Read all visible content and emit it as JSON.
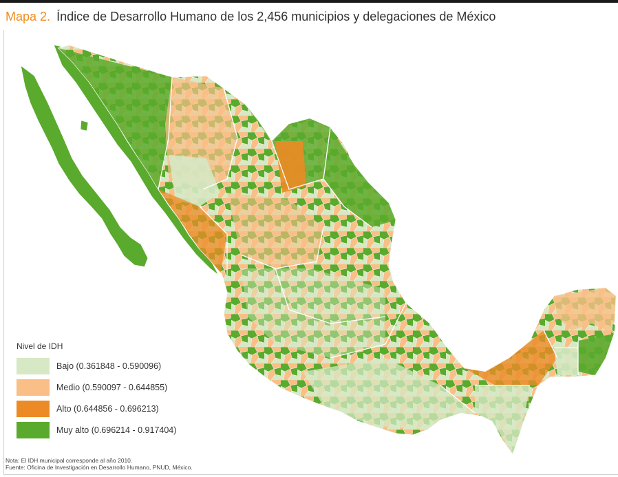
{
  "title": {
    "prefix": "Mapa 2.",
    "text": "Índice de Desarrollo Humano de los 2,456 municipios y delegaciones de México"
  },
  "legend": {
    "title": "Nivel de IDH",
    "items": [
      {
        "label": "Bajo (0.361848 - 0.590096)",
        "color": "#d6e8c4"
      },
      {
        "label": "Medio (0.590097 - 0.644855)",
        "color": "#f9bf87"
      },
      {
        "label": "Alto (0.644856 - 0.696213)",
        "color": "#ec8b25"
      },
      {
        "label": "Muy alto (0.696214 - 0.917404)",
        "color": "#5aaa2d"
      }
    ]
  },
  "notes": {
    "nota": "Nota: El IDH municipal corresponde al año 2010.",
    "fuente": "Fuente: Oficina de Investigación en Desarrollo Humano, PNUD, México."
  },
  "colors": {
    "title_accent": "#f08c1e",
    "border": "#ffffff"
  }
}
